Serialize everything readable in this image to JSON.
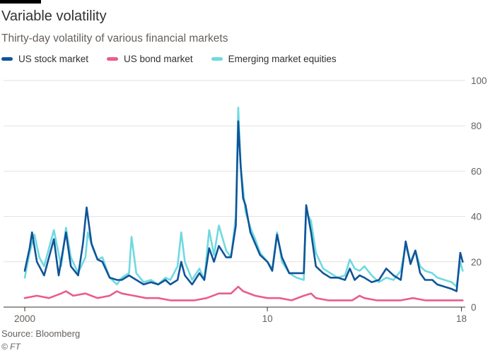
{
  "header": {
    "title": "Variable volatility",
    "subtitle": "Thirty-day volatility of various financial markets"
  },
  "footer": {
    "source": "Source: Bloomberg",
    "credit": "© FT"
  },
  "legend": [
    {
      "label": "US stock market",
      "color": "#0f5499"
    },
    {
      "label": "US bond market",
      "color": "#e95d8c"
    },
    {
      "label": "Emerging market equities",
      "color": "#6fd9e0"
    }
  ],
  "chart_data": {
    "type": "line",
    "title": "Variable volatility",
    "subtitle": "Thirty-day volatility of various financial markets",
    "xlabel": "",
    "ylabel": "",
    "xlim": [
      2000,
      2018.1
    ],
    "ylim": [
      0,
      100
    ],
    "x_ticks": [
      {
        "value": 2000,
        "label": "2000"
      },
      {
        "value": 2010,
        "label": "10"
      },
      {
        "value": 2018,
        "label": "18"
      }
    ],
    "y_ticks": [
      0,
      20,
      40,
      60,
      80,
      100
    ],
    "grid": true,
    "legend_position": "top-left",
    "series": [
      {
        "name": "Emerging market equities",
        "color": "#6fd9e0",
        "points": [
          [
            2000.0,
            13
          ],
          [
            2000.2,
            24
          ],
          [
            2000.4,
            32
          ],
          [
            2000.6,
            22
          ],
          [
            2000.8,
            18
          ],
          [
            2001.0,
            26
          ],
          [
            2001.2,
            34
          ],
          [
            2001.5,
            18
          ],
          [
            2001.7,
            35
          ],
          [
            2001.9,
            22
          ],
          [
            2002.2,
            15
          ],
          [
            2002.5,
            22
          ],
          [
            2002.6,
            33
          ],
          [
            2002.8,
            26
          ],
          [
            2003.0,
            21
          ],
          [
            2003.2,
            22
          ],
          [
            2003.5,
            13
          ],
          [
            2003.8,
            10
          ],
          [
            2004.0,
            13
          ],
          [
            2004.3,
            15
          ],
          [
            2004.4,
            31
          ],
          [
            2004.6,
            15
          ],
          [
            2004.9,
            11
          ],
          [
            2005.2,
            12
          ],
          [
            2005.5,
            10
          ],
          [
            2005.8,
            13
          ],
          [
            2006.0,
            12
          ],
          [
            2006.3,
            18
          ],
          [
            2006.45,
            33
          ],
          [
            2006.6,
            20
          ],
          [
            2006.9,
            12
          ],
          [
            2007.2,
            17
          ],
          [
            2007.4,
            12
          ],
          [
            2007.6,
            34
          ],
          [
            2007.8,
            23
          ],
          [
            2008.0,
            36
          ],
          [
            2008.3,
            25
          ],
          [
            2008.5,
            22
          ],
          [
            2008.7,
            40
          ],
          [
            2008.8,
            88
          ],
          [
            2008.9,
            62
          ],
          [
            2009.0,
            52
          ],
          [
            2009.1,
            42
          ],
          [
            2009.3,
            35
          ],
          [
            2009.5,
            30
          ],
          [
            2009.7,
            24
          ],
          [
            2010.0,
            20
          ],
          [
            2010.2,
            17
          ],
          [
            2010.4,
            33
          ],
          [
            2010.6,
            20
          ],
          [
            2010.9,
            15
          ],
          [
            2011.2,
            13
          ],
          [
            2011.5,
            12
          ],
          [
            2011.6,
            42
          ],
          [
            2011.8,
            38
          ],
          [
            2012.0,
            24
          ],
          [
            2012.3,
            17
          ],
          [
            2012.6,
            15
          ],
          [
            2012.9,
            13
          ],
          [
            2013.2,
            14
          ],
          [
            2013.4,
            21
          ],
          [
            2013.6,
            17
          ],
          [
            2013.8,
            16
          ],
          [
            2014.0,
            18
          ],
          [
            2014.3,
            14
          ],
          [
            2014.6,
            11
          ],
          [
            2014.9,
            13
          ],
          [
            2015.2,
            12
          ],
          [
            2015.5,
            16
          ],
          [
            2015.7,
            27
          ],
          [
            2015.9,
            20
          ],
          [
            2016.1,
            25
          ],
          [
            2016.3,
            18
          ],
          [
            2016.5,
            16
          ],
          [
            2016.8,
            15
          ],
          [
            2017.0,
            13
          ],
          [
            2017.3,
            12
          ],
          [
            2017.6,
            11
          ],
          [
            2017.8,
            9
          ],
          [
            2017.95,
            20
          ],
          [
            2018.05,
            16
          ]
        ]
      },
      {
        "name": "US stock market",
        "color": "#0f5499",
        "points": [
          [
            2000.0,
            16
          ],
          [
            2000.2,
            26
          ],
          [
            2000.3,
            33
          ],
          [
            2000.5,
            20
          ],
          [
            2000.8,
            14
          ],
          [
            2001.0,
            22
          ],
          [
            2001.2,
            30
          ],
          [
            2001.4,
            14
          ],
          [
            2001.7,
            33
          ],
          [
            2001.9,
            18
          ],
          [
            2002.2,
            14
          ],
          [
            2002.4,
            28
          ],
          [
            2002.55,
            44
          ],
          [
            2002.75,
            28
          ],
          [
            2003.0,
            21
          ],
          [
            2003.2,
            20
          ],
          [
            2003.5,
            13
          ],
          [
            2003.8,
            12
          ],
          [
            2004.0,
            12
          ],
          [
            2004.3,
            14
          ],
          [
            2004.6,
            12
          ],
          [
            2004.9,
            10
          ],
          [
            2005.2,
            11
          ],
          [
            2005.5,
            10
          ],
          [
            2005.8,
            12
          ],
          [
            2006.0,
            10
          ],
          [
            2006.3,
            12
          ],
          [
            2006.45,
            20
          ],
          [
            2006.6,
            14
          ],
          [
            2006.9,
            10
          ],
          [
            2007.2,
            15
          ],
          [
            2007.4,
            12
          ],
          [
            2007.6,
            26
          ],
          [
            2007.8,
            20
          ],
          [
            2008.0,
            27
          ],
          [
            2008.3,
            22
          ],
          [
            2008.5,
            22
          ],
          [
            2008.7,
            36
          ],
          [
            2008.8,
            82
          ],
          [
            2008.9,
            62
          ],
          [
            2009.0,
            48
          ],
          [
            2009.1,
            45
          ],
          [
            2009.3,
            33
          ],
          [
            2009.5,
            28
          ],
          [
            2009.7,
            23
          ],
          [
            2010.0,
            20
          ],
          [
            2010.2,
            16
          ],
          [
            2010.4,
            32
          ],
          [
            2010.6,
            22
          ],
          [
            2010.9,
            15
          ],
          [
            2011.2,
            15
          ],
          [
            2011.5,
            15
          ],
          [
            2011.6,
            45
          ],
          [
            2011.8,
            33
          ],
          [
            2012.0,
            18
          ],
          [
            2012.3,
            15
          ],
          [
            2012.6,
            13
          ],
          [
            2012.9,
            13
          ],
          [
            2013.2,
            12
          ],
          [
            2013.4,
            17
          ],
          [
            2013.6,
            12
          ],
          [
            2013.8,
            14
          ],
          [
            2014.0,
            13
          ],
          [
            2014.3,
            11
          ],
          [
            2014.6,
            12
          ],
          [
            2014.9,
            17
          ],
          [
            2015.2,
            14
          ],
          [
            2015.5,
            12
          ],
          [
            2015.7,
            29
          ],
          [
            2015.9,
            19
          ],
          [
            2016.1,
            25
          ],
          [
            2016.3,
            15
          ],
          [
            2016.5,
            12
          ],
          [
            2016.8,
            12
          ],
          [
            2017.0,
            10
          ],
          [
            2017.3,
            9
          ],
          [
            2017.6,
            8
          ],
          [
            2017.8,
            7
          ],
          [
            2017.95,
            24
          ],
          [
            2018.05,
            20
          ]
        ]
      },
      {
        "name": "US bond market",
        "color": "#e95d8c",
        "points": [
          [
            2000.0,
            4
          ],
          [
            2000.5,
            5
          ],
          [
            2001.0,
            4
          ],
          [
            2001.5,
            6
          ],
          [
            2001.7,
            7
          ],
          [
            2002.0,
            5
          ],
          [
            2002.5,
            6
          ],
          [
            2003.0,
            4
          ],
          [
            2003.5,
            5
          ],
          [
            2003.8,
            7
          ],
          [
            2004.0,
            6
          ],
          [
            2004.5,
            5
          ],
          [
            2005.0,
            4
          ],
          [
            2005.5,
            4
          ],
          [
            2006.0,
            3
          ],
          [
            2006.5,
            3
          ],
          [
            2007.0,
            3
          ],
          [
            2007.5,
            4
          ],
          [
            2008.0,
            6
          ],
          [
            2008.5,
            6
          ],
          [
            2008.8,
            9
          ],
          [
            2009.0,
            7
          ],
          [
            2009.5,
            5
          ],
          [
            2010.0,
            4
          ],
          [
            2010.5,
            4
          ],
          [
            2011.0,
            3
          ],
          [
            2011.5,
            5
          ],
          [
            2011.8,
            6
          ],
          [
            2012.0,
            4
          ],
          [
            2012.5,
            3
          ],
          [
            2013.0,
            3
          ],
          [
            2013.5,
            3
          ],
          [
            2013.8,
            5
          ],
          [
            2014.0,
            4
          ],
          [
            2014.5,
            3
          ],
          [
            2015.0,
            3
          ],
          [
            2015.5,
            3
          ],
          [
            2016.0,
            4
          ],
          [
            2016.5,
            3
          ],
          [
            2017.0,
            3
          ],
          [
            2017.5,
            3
          ],
          [
            2018.05,
            3
          ]
        ]
      }
    ]
  }
}
